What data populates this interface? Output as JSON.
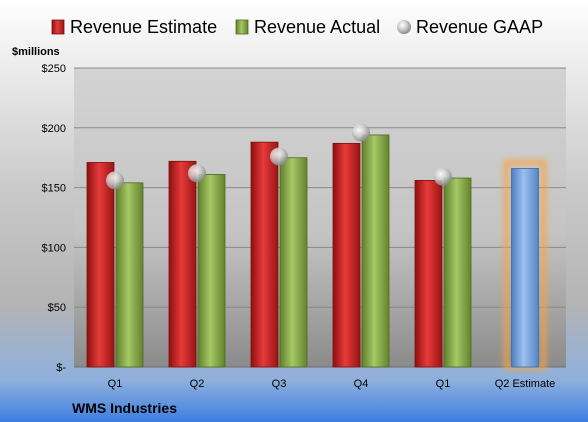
{
  "chart_data": {
    "type": "bar",
    "title": "",
    "ylabel": "$millions",
    "company": "WMS Industries",
    "ylim": [
      0,
      250
    ],
    "yticks": [
      0,
      50,
      100,
      150,
      200,
      250
    ],
    "ytick_labels": [
      "$-",
      "$50",
      "$100",
      "$150",
      "$200",
      "$250"
    ],
    "grid": true,
    "legend_position": "top",
    "categories": [
      "Q1",
      "Q2",
      "Q3",
      "Q4",
      "Q1",
      "Q2 Estimate"
    ],
    "series": [
      {
        "name": "Revenue Estimate",
        "kind": "bar",
        "color": "#d42a2a",
        "values": [
          171,
          172,
          188,
          187,
          156,
          null
        ]
      },
      {
        "name": "Revenue Actual",
        "kind": "bar",
        "color": "#8cb04a",
        "values": [
          154,
          161,
          175,
          194,
          158,
          null
        ]
      },
      {
        "name": "Revenue GAAP",
        "kind": "marker",
        "color": "#c0c0c0",
        "values": [
          156,
          162,
          176,
          196,
          159,
          null
        ]
      },
      {
        "name": "",
        "kind": "bar",
        "color": "#7aa6dc",
        "highlight": "#f5a545",
        "values": [
          null,
          null,
          null,
          null,
          null,
          166
        ]
      }
    ]
  }
}
